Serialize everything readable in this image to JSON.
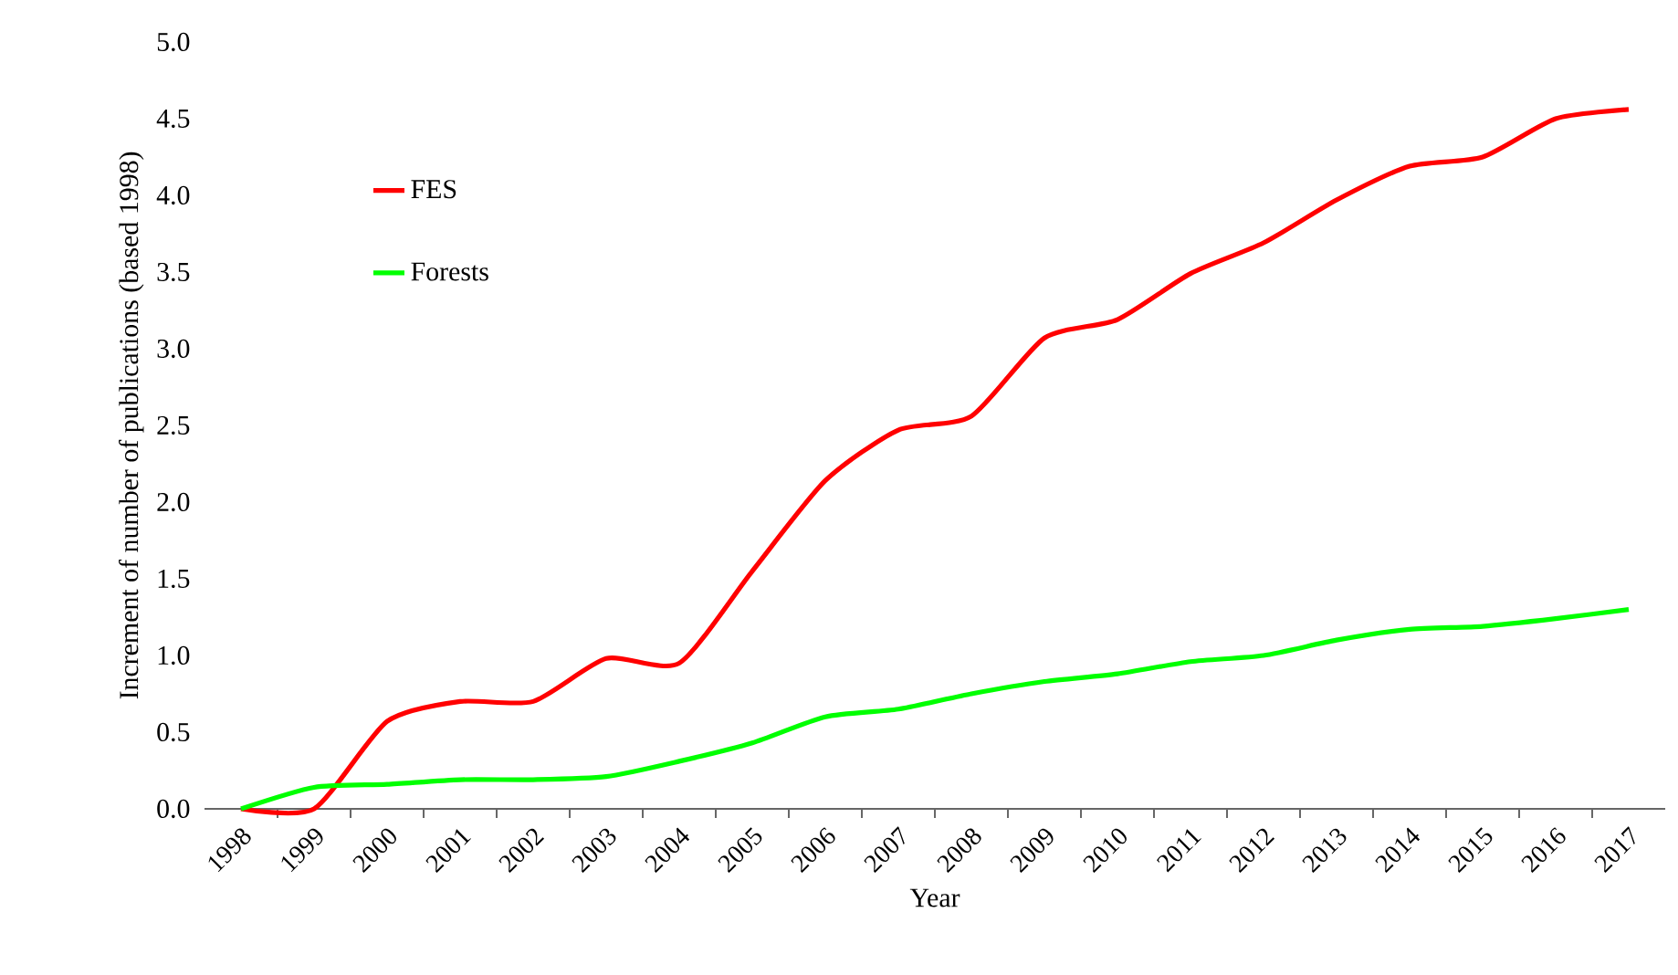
{
  "chart_data": {
    "type": "line",
    "xlabel": "Year",
    "ylabel": "Increment of number of publications (based 1998)",
    "categories": [
      "1998",
      "1999",
      "2000",
      "2001",
      "2002",
      "2003",
      "2004",
      "2005",
      "2006",
      "2007",
      "2008",
      "2009",
      "2010",
      "2011",
      "2012",
      "2013",
      "2014",
      "2015",
      "2016",
      "2017"
    ],
    "series": [
      {
        "name": "FES",
        "color": "#ff0000",
        "values": [
          0,
          0,
          0.57,
          0.7,
          0.7,
          0.98,
          0.95,
          1.55,
          2.14,
          2.47,
          2.56,
          3.07,
          3.19,
          3.49,
          3.69,
          3.97,
          4.19,
          4.25,
          4.5,
          4.56
        ]
      },
      {
        "name": "Forests",
        "color": "#00ff00",
        "values": [
          0,
          0.14,
          0.16,
          0.19,
          0.19,
          0.21,
          0.31,
          0.43,
          0.6,
          0.65,
          0.75,
          0.83,
          0.88,
          0.96,
          1.0,
          1.1,
          1.17,
          1.19,
          1.24,
          1.3
        ]
      }
    ],
    "ylim": [
      0,
      5
    ],
    "yticks": [
      {
        "value": 0,
        "label": "0.0"
      },
      {
        "value": 0.5,
        "label": "0.5"
      },
      {
        "value": 1,
        "label": "1.0"
      },
      {
        "value": 1.5,
        "label": "1.5"
      },
      {
        "value": 2,
        "label": "2.0"
      },
      {
        "value": 2.5,
        "label": "2.5"
      },
      {
        "value": 3,
        "label": "3.0"
      },
      {
        "value": 3.5,
        "label": "3.5"
      },
      {
        "value": 4,
        "label": "4.0"
      },
      {
        "value": 4.5,
        "label": "4.5"
      },
      {
        "value": 5,
        "label": "5.0"
      }
    ],
    "legend": "top left",
    "grid": false,
    "marker": "none",
    "line_style": "solid"
  }
}
